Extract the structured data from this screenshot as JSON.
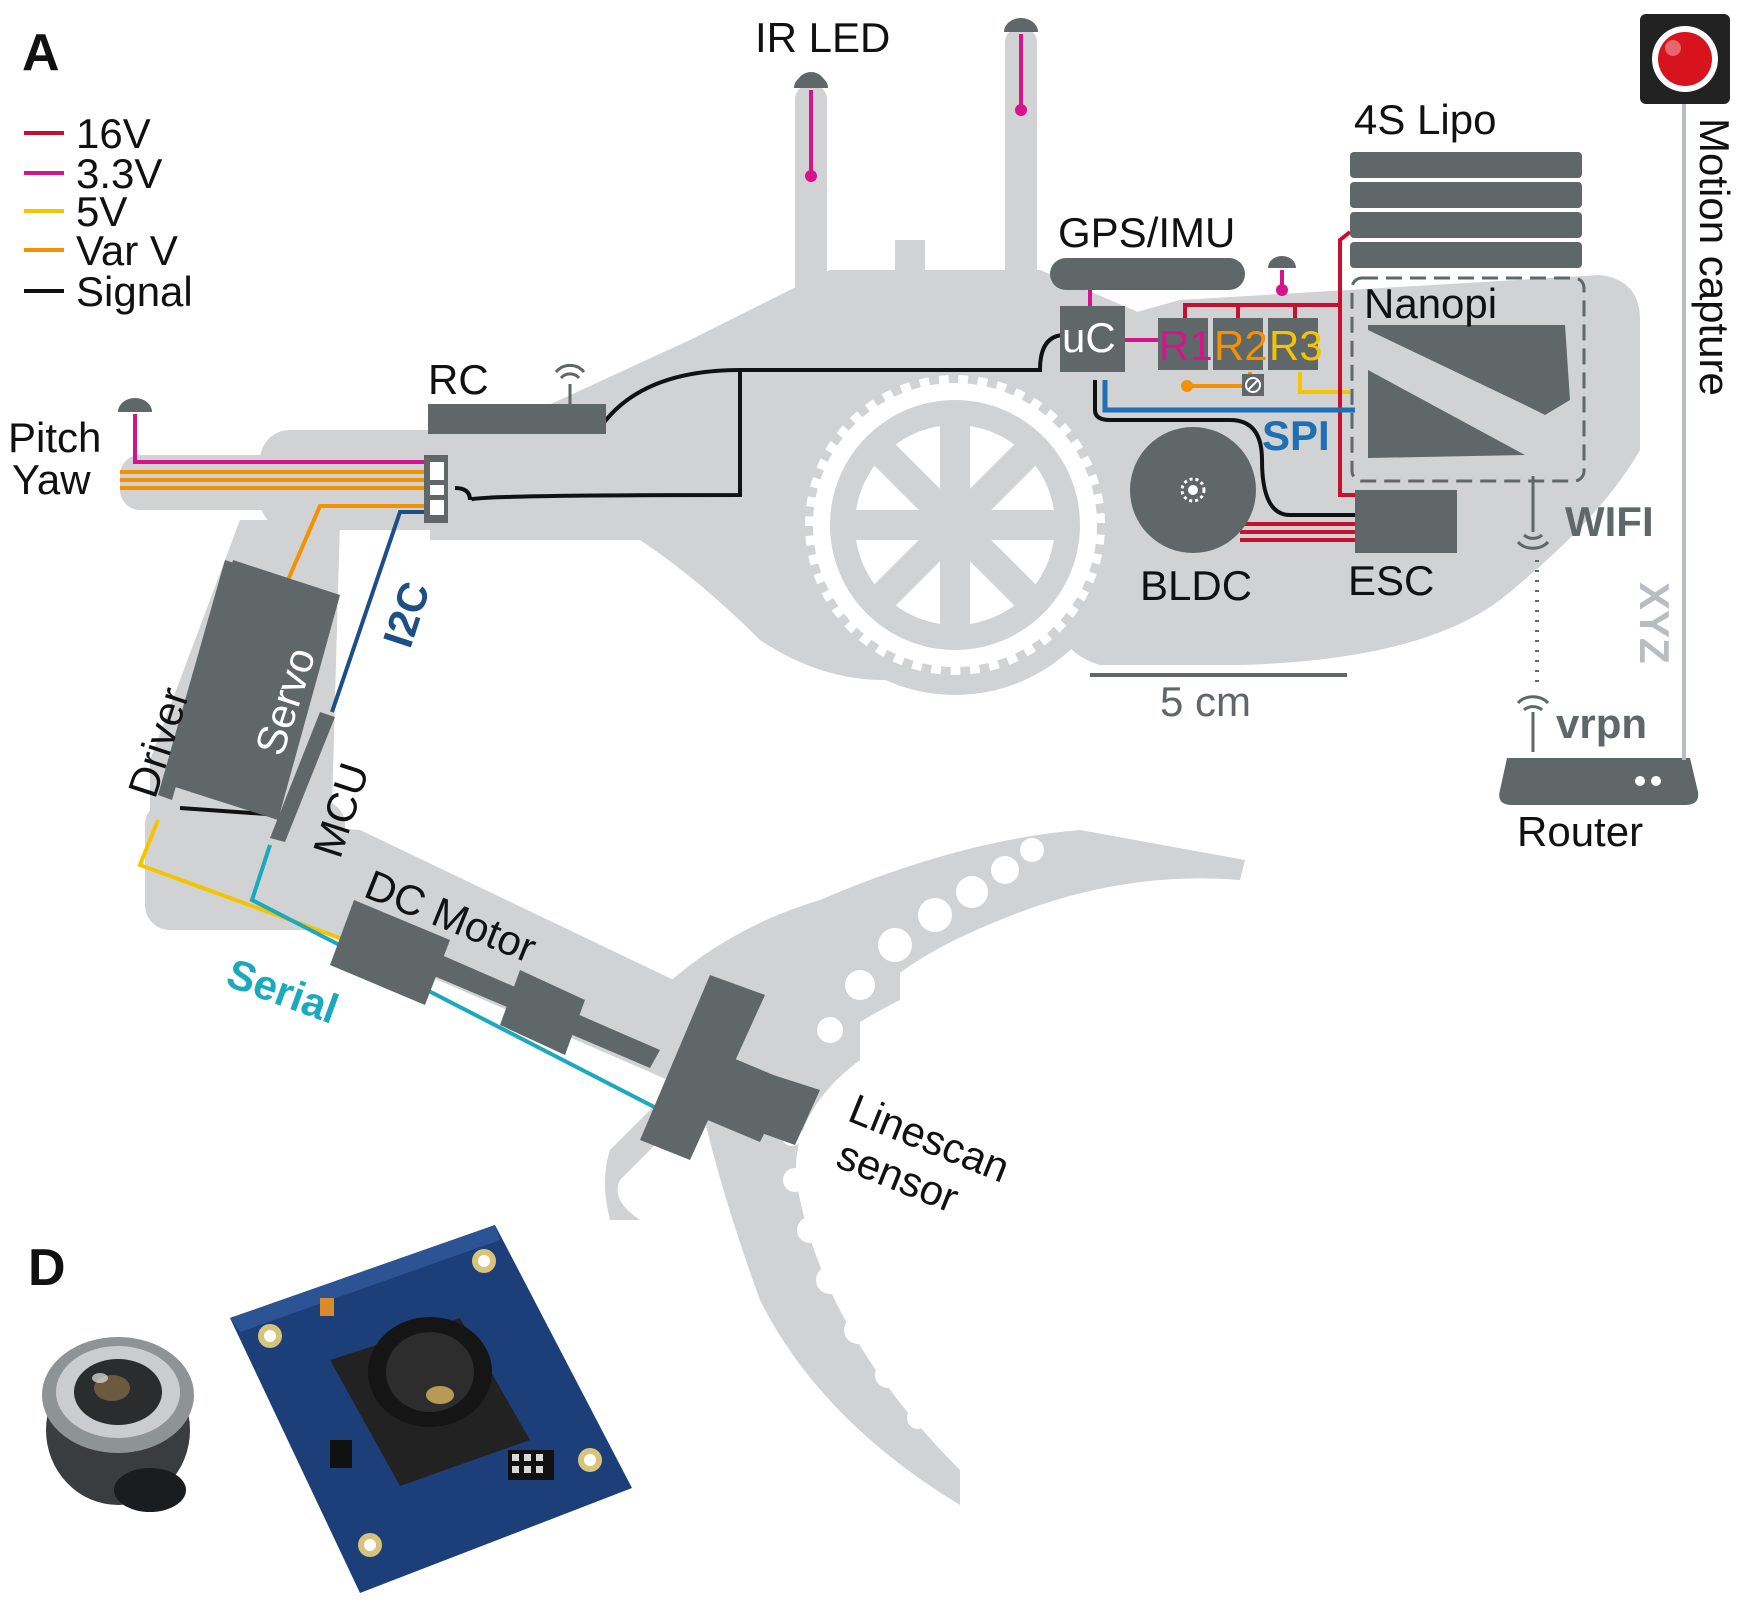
{
  "panels": {
    "a": "A",
    "d": "D"
  },
  "legend": [
    {
      "label": "16V",
      "color": "#c8102e"
    },
    {
      "label": "3.3V",
      "color": "#d6138a"
    },
    {
      "label": "5V",
      "color": "#f5c400"
    },
    {
      "label": "Var V",
      "color": "#f39200"
    },
    {
      "label": "Signal",
      "color": "#111111"
    }
  ],
  "labels": {
    "ir_led": "IR LED",
    "lipo": "4S Lipo",
    "gps_imu": "GPS/IMU",
    "uc": "uC",
    "r1": "R1",
    "r2": "R2",
    "r3": "R3",
    "nanopi": "Nanopi",
    "rc": "RC",
    "pitch": "Pitch",
    "yaw": "Yaw",
    "spi": "SPI",
    "wifi": "WIFI",
    "bldc": "BLDC",
    "esc": "ESC",
    "scale": "5 cm",
    "motion_capture": "Motion capture",
    "xyz": "XYZ",
    "vrpn": "vrpn",
    "router": "Router",
    "i2c": "I2C",
    "servo": "Servo",
    "driver": "Driver",
    "mcu": "MCU",
    "dc_motor": "DC Motor",
    "serial": "Serial",
    "linescan_1": "Linescan",
    "linescan_2": "sensor"
  },
  "colors": {
    "frame": "#d1d2d4",
    "component": "#5f6769",
    "v16": "#c8102e",
    "v33": "#d6138a",
    "v5": "#f5c400",
    "varv": "#f39200",
    "signal": "#111111",
    "spi": "#1f6fb5",
    "i2c": "#1d4f86",
    "serial": "#1ba9bd",
    "xyz": "#b9bcc0",
    "pcb": "#1c3f7a"
  }
}
